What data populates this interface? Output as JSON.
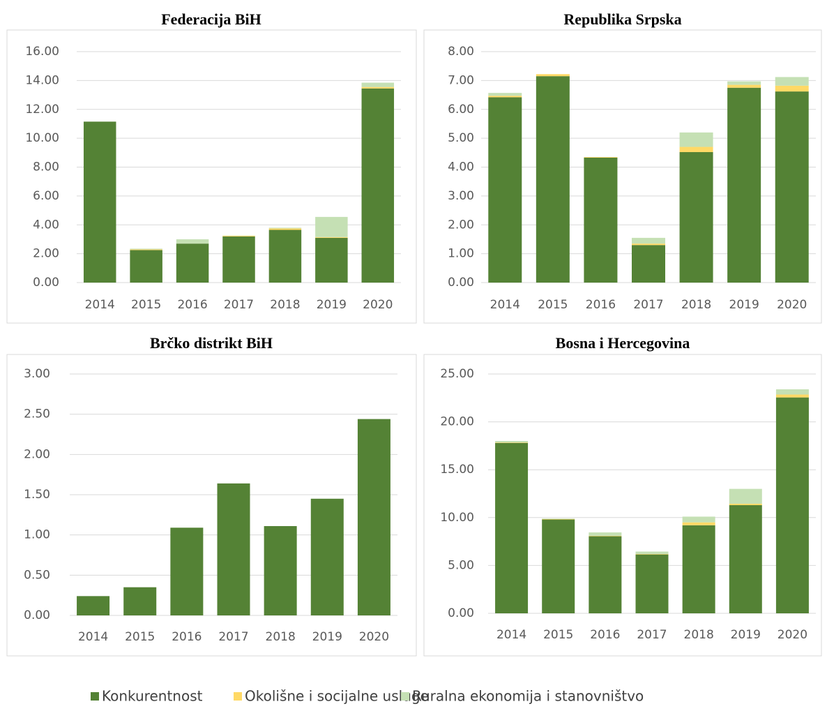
{
  "legend": [
    {
      "name": "Konkurentnost",
      "color": "#548235"
    },
    {
      "name": "Okolišne i socijalne usluge",
      "color": "#ffd966"
    },
    {
      "name": "Ruralna ekonomija i stanovništvo",
      "color": "#c5e0b4"
    }
  ],
  "chart_data": [
    {
      "type": "bar",
      "stacked": true,
      "title": "Federacija BiH",
      "categories": [
        "2014",
        "2015",
        "2016",
        "2017",
        "2018",
        "2019",
        "2020"
      ],
      "series": [
        {
          "values": [
            11.15,
            2.25,
            2.7,
            3.2,
            3.65,
            3.1,
            13.45
          ]
        },
        {
          "values": [
            0,
            0.05,
            0,
            0.05,
            0.1,
            0.05,
            0.1
          ]
        },
        {
          "values": [
            0,
            0.05,
            0.3,
            0,
            0.05,
            1.4,
            0.3
          ]
        }
      ],
      "ylim": [
        0,
        16
      ],
      "yticks": [
        {
          "value": 0,
          "label": "0.00"
        },
        {
          "value": 2,
          "label": "2.00"
        },
        {
          "value": 4,
          "label": "4.00"
        },
        {
          "value": 6,
          "label": "6.00"
        },
        {
          "value": 8,
          "label": "8.00"
        },
        {
          "value": 10,
          "label": "10.00"
        },
        {
          "value": 12,
          "label": "12.00"
        },
        {
          "value": 14,
          "label": "14.00"
        },
        {
          "value": 16,
          "label": "16.00"
        }
      ],
      "grid": true
    },
    {
      "type": "bar",
      "stacked": true,
      "title": "Republika Srpska",
      "categories": [
        "2014",
        "2015",
        "2016",
        "2017",
        "2018",
        "2019",
        "2020"
      ],
      "series": [
        {
          "values": [
            6.42,
            7.15,
            4.33,
            1.3,
            4.52,
            6.75,
            6.62
          ]
        },
        {
          "values": [
            0.05,
            0.07,
            0.02,
            0.05,
            0.18,
            0.1,
            0.2
          ]
        },
        {
          "values": [
            0.1,
            0,
            0,
            0.2,
            0.5,
            0.12,
            0.3
          ]
        }
      ],
      "ylim": [
        0,
        8
      ],
      "yticks": [
        {
          "value": 0,
          "label": "0.00"
        },
        {
          "value": 1,
          "label": "1.00"
        },
        {
          "value": 2,
          "label": "2.00"
        },
        {
          "value": 3,
          "label": "3.00"
        },
        {
          "value": 4,
          "label": "4.00"
        },
        {
          "value": 5,
          "label": "5.00"
        },
        {
          "value": 6,
          "label": "6.00"
        },
        {
          "value": 7,
          "label": "7.00"
        },
        {
          "value": 8,
          "label": "8.00"
        }
      ],
      "grid": true
    },
    {
      "type": "bar",
      "stacked": true,
      "title": "Brčko distrikt BiH",
      "categories": [
        "2014",
        "2015",
        "2016",
        "2017",
        "2018",
        "2019",
        "2020"
      ],
      "series": [
        {
          "values": [
            0.24,
            0.35,
            1.09,
            1.64,
            1.11,
            1.45,
            2.44
          ]
        },
        {
          "values": [
            0,
            0,
            0,
            0,
            0,
            0,
            0
          ]
        },
        {
          "values": [
            0,
            0,
            0,
            0,
            0,
            0,
            0
          ]
        }
      ],
      "ylim": [
        0,
        3
      ],
      "yticks": [
        {
          "value": 0,
          "label": "0.00"
        },
        {
          "value": 0.5,
          "label": "0.50"
        },
        {
          "value": 1,
          "label": "1.00"
        },
        {
          "value": 1.5,
          "label": "1.50"
        },
        {
          "value": 2,
          "label": "2.00"
        },
        {
          "value": 2.5,
          "label": "2.50"
        },
        {
          "value": 3,
          "label": "3.00"
        }
      ],
      "grid": true
    },
    {
      "type": "bar",
      "stacked": true,
      "title": "Bosna i Hercegovina",
      "categories": [
        "2014",
        "2015",
        "2016",
        "2017",
        "2018",
        "2019",
        "2020"
      ],
      "series": [
        {
          "values": [
            17.8,
            9.8,
            8.05,
            6.15,
            9.2,
            11.3,
            22.55
          ]
        },
        {
          "values": [
            0.05,
            0.05,
            0.05,
            0.05,
            0.3,
            0.15,
            0.3
          ]
        },
        {
          "values": [
            0.15,
            0.05,
            0.35,
            0.25,
            0.6,
            1.55,
            0.55
          ]
        }
      ],
      "ylim": [
        0,
        25
      ],
      "yticks": [
        {
          "value": 0,
          "label": "0.00"
        },
        {
          "value": 5,
          "label": "5.00"
        },
        {
          "value": 10,
          "label": "10.00"
        },
        {
          "value": 15,
          "label": "15.00"
        },
        {
          "value": 20,
          "label": "20.00"
        },
        {
          "value": 25,
          "label": "25.00"
        }
      ],
      "grid": true
    }
  ]
}
